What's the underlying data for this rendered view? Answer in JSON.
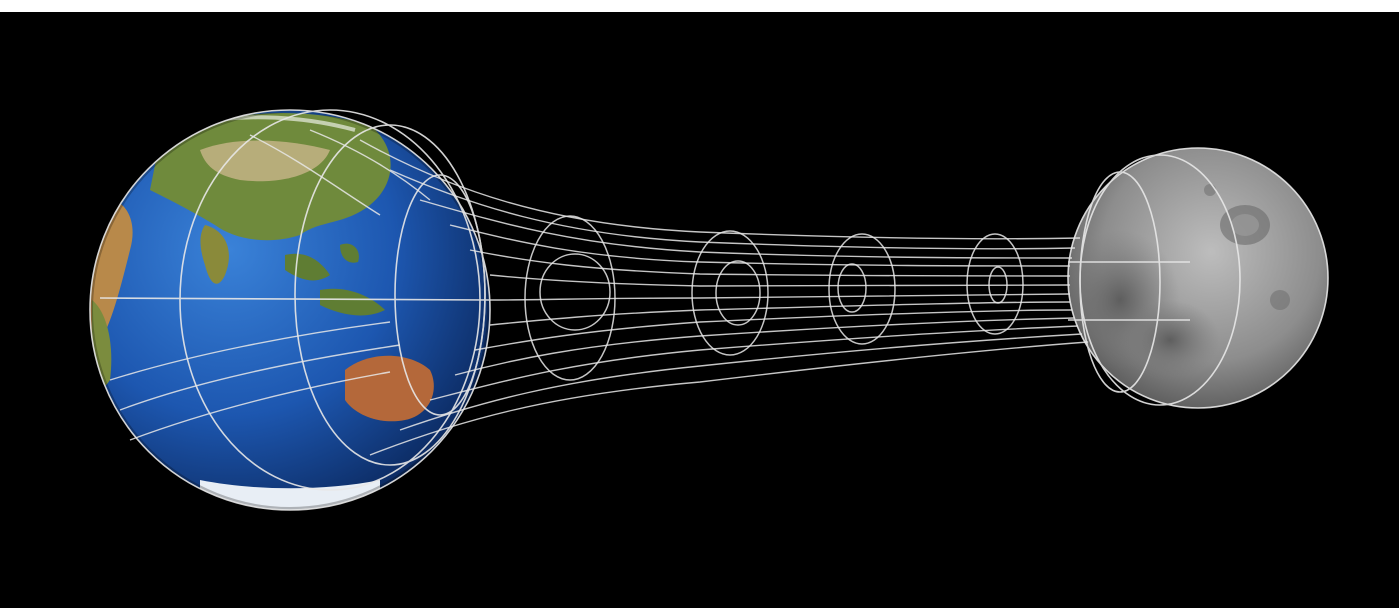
{
  "colors": {
    "background": "#000000",
    "ocean": "#1d57b0",
    "land": "#6f8a3c",
    "desert": "#b4683a",
    "moon": "#8d8d8d",
    "field_lines": "#e8e8e8"
  },
  "icons": {
    "earth": "earth-globe",
    "moon": "moon-sphere"
  }
}
